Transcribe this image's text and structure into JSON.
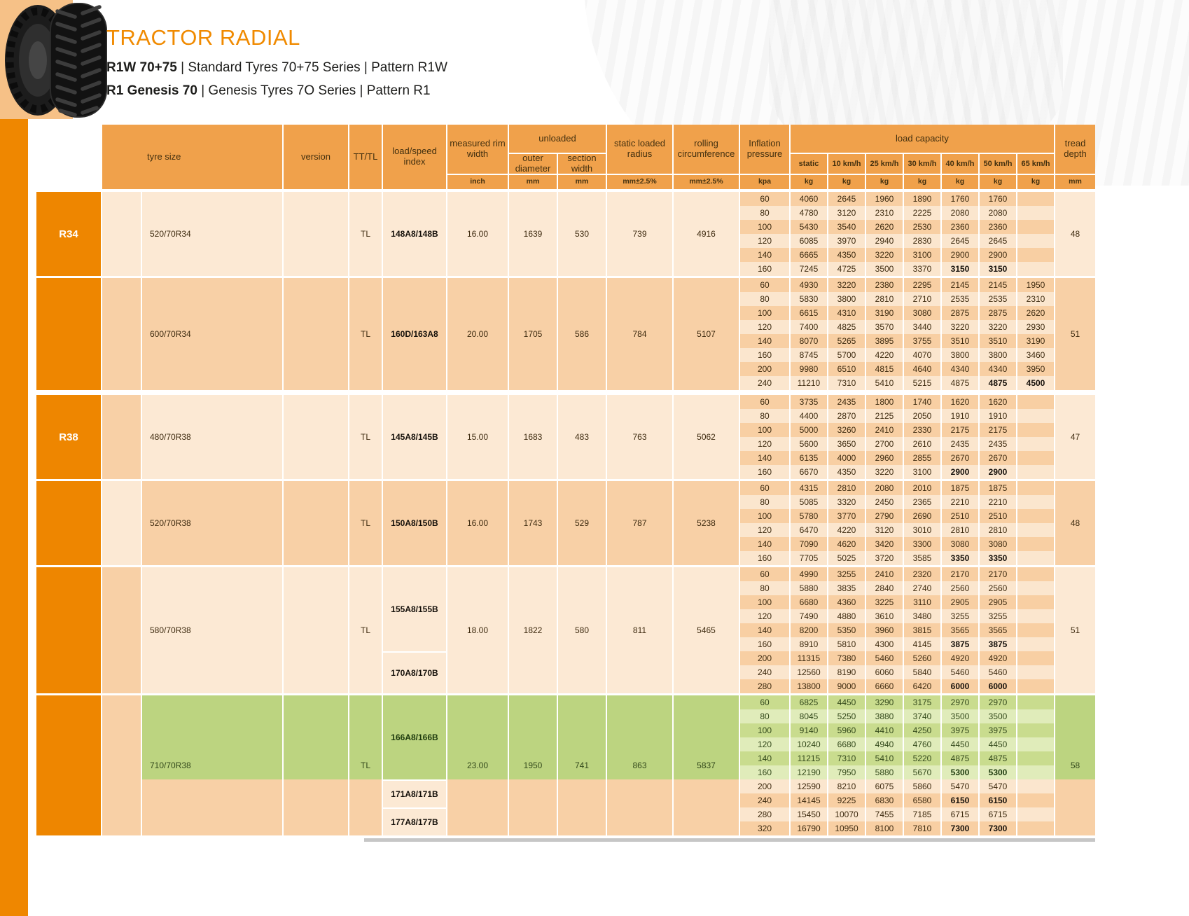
{
  "page": {
    "title": "TRACTOR RADIAL",
    "subtitle1": {
      "bold": "R1W 70+75",
      "rest": " | Standard Tyres 70+75 Series | Pattern R1W"
    },
    "subtitle2": {
      "bold": "R1 Genesis 70",
      "rest": " | Genesis Tyres 7O Series | Pattern R1"
    },
    "colors": {
      "brand_orange": "#F08A00",
      "header_orange": "#F0A14B",
      "group_label_orange": "#EE8600",
      "highlight_green": "#BCD480"
    }
  },
  "table": {
    "header": {
      "tyre_size": "tyre size",
      "version": "version",
      "tt_tl": "TT/TL",
      "load_speed_index": "load/speed index",
      "measured_rim_width": "measured rim width",
      "unloaded": "unloaded",
      "outer_diameter": "outer diameter",
      "section_width": "section width",
      "static_loaded_radius": "static loaded radius",
      "rolling_circumference": "rolling circumference",
      "inflation_pressure": "Inflation pressure",
      "load_capacity": "load capacity",
      "speeds": [
        "static",
        "10 km/h",
        "25 km/h",
        "30 km/h",
        "40 km/h",
        "50 km/h",
        "65 km/h"
      ],
      "tread_depth": "tread depth"
    },
    "units": {
      "rim": "inch",
      "outer": "mm",
      "section": "mm",
      "radius": "mm±2.5%",
      "circumference": "mm±2.5%",
      "pressure": "kpa",
      "load": [
        "kg",
        "kg",
        "kg",
        "kg",
        "kg",
        "kg",
        "kg"
      ],
      "tread": "mm"
    },
    "groups": [
      {
        "size_label": "R34",
        "tyre_size": "520/70R34",
        "version": "",
        "tt_tl": "TL",
        "load_speed": [
          {
            "label": "148A8/148B",
            "from": 1,
            "span": 6,
            "theme": "light"
          }
        ],
        "rim_width": "16.00",
        "outer_diameter": "1639",
        "section_width": "530",
        "static_loaded_radius": "739",
        "rolling_circumference": "4916",
        "tread_depth": "48",
        "tint": "light",
        "strip": "light",
        "rows": [
          {
            "kpa": "60",
            "shade": "d",
            "vals": [
              "4060",
              "2645",
              "1960",
              "1890",
              "1760",
              "1760",
              ""
            ]
          },
          {
            "kpa": "80",
            "shade": "l",
            "vals": [
              "4780",
              "3120",
              "2310",
              "2225",
              "2080",
              "2080",
              ""
            ]
          },
          {
            "kpa": "100",
            "shade": "d",
            "vals": [
              "5430",
              "3540",
              "2620",
              "2530",
              "2360",
              "2360",
              ""
            ]
          },
          {
            "kpa": "120",
            "shade": "l",
            "vals": [
              "6085",
              "3970",
              "2940",
              "2830",
              "2645",
              "2645",
              ""
            ]
          },
          {
            "kpa": "140",
            "shade": "d",
            "vals": [
              "6665",
              "4350",
              "3220",
              "3100",
              "2900",
              "2900",
              ""
            ]
          },
          {
            "kpa": "160",
            "shade": "l",
            "vals": [
              "7245",
              "4725",
              "3500",
              "3370",
              "3150",
              "3150",
              ""
            ],
            "bold": [
              4,
              5
            ]
          }
        ]
      },
      {
        "size_label": "",
        "tyre_size": "600/70R34",
        "version": "",
        "tt_tl": "TL",
        "load_speed": [
          {
            "label": "160D/163A8",
            "from": 1,
            "span": 8,
            "theme": "mid"
          }
        ],
        "rim_width": "20.00",
        "outer_diameter": "1705",
        "section_width": "586",
        "static_loaded_radius": "784",
        "rolling_circumference": "5107",
        "tread_depth": "51",
        "tint": "mid",
        "strip": "mid",
        "rows": [
          {
            "kpa": "60",
            "shade": "d",
            "vals": [
              "4930",
              "3220",
              "2380",
              "2295",
              "2145",
              "2145",
              "1950"
            ]
          },
          {
            "kpa": "80",
            "shade": "l",
            "vals": [
              "5830",
              "3800",
              "2810",
              "2710",
              "2535",
              "2535",
              "2310"
            ]
          },
          {
            "kpa": "100",
            "shade": "d",
            "vals": [
              "6615",
              "4310",
              "3190",
              "3080",
              "2875",
              "2875",
              "2620"
            ]
          },
          {
            "kpa": "120",
            "shade": "l",
            "vals": [
              "7400",
              "4825",
              "3570",
              "3440",
              "3220",
              "3220",
              "2930"
            ]
          },
          {
            "kpa": "140",
            "shade": "d",
            "vals": [
              "8070",
              "5265",
              "3895",
              "3755",
              "3510",
              "3510",
              "3190"
            ]
          },
          {
            "kpa": "160",
            "shade": "l",
            "vals": [
              "8745",
              "5700",
              "4220",
              "4070",
              "3800",
              "3800",
              "3460"
            ]
          },
          {
            "kpa": "200",
            "shade": "d",
            "vals": [
              "9980",
              "6510",
              "4815",
              "4640",
              "4340",
              "4340",
              "3950"
            ]
          },
          {
            "kpa": "240",
            "shade": "l",
            "vals": [
              "11210",
              "7310",
              "5410",
              "5215",
              "4875",
              "4875",
              "4500"
            ],
            "bold": [
              5,
              6
            ]
          }
        ]
      },
      {
        "size_label": "R38",
        "tyre_size": "480/70R38",
        "version": "",
        "tt_tl": "TL",
        "load_speed": [
          {
            "label": "145A8/145B",
            "from": 1,
            "span": 6,
            "theme": "light"
          }
        ],
        "rim_width": "15.00",
        "outer_diameter": "1683",
        "section_width": "483",
        "static_loaded_radius": "763",
        "rolling_circumference": "5062",
        "tread_depth": "47",
        "tint": "light",
        "strip": "mid",
        "rows": [
          {
            "kpa": "60",
            "shade": "d",
            "vals": [
              "3735",
              "2435",
              "1800",
              "1740",
              "1620",
              "1620",
              ""
            ]
          },
          {
            "kpa": "80",
            "shade": "l",
            "vals": [
              "4400",
              "2870",
              "2125",
              "2050",
              "1910",
              "1910",
              ""
            ]
          },
          {
            "kpa": "100",
            "shade": "d",
            "vals": [
              "5000",
              "3260",
              "2410",
              "2330",
              "2175",
              "2175",
              ""
            ]
          },
          {
            "kpa": "120",
            "shade": "l",
            "vals": [
              "5600",
              "3650",
              "2700",
              "2610",
              "2435",
              "2435",
              ""
            ]
          },
          {
            "kpa": "140",
            "shade": "d",
            "vals": [
              "6135",
              "4000",
              "2960",
              "2855",
              "2670",
              "2670",
              ""
            ]
          },
          {
            "kpa": "160",
            "shade": "l",
            "vals": [
              "6670",
              "4350",
              "3220",
              "3100",
              "2900",
              "2900",
              ""
            ],
            "bold": [
              4,
              5
            ]
          }
        ]
      },
      {
        "size_label": "",
        "tyre_size": "520/70R38",
        "version": "",
        "tt_tl": "TL",
        "load_speed": [
          {
            "label": "150A8/150B",
            "from": 1,
            "span": 6,
            "theme": "mid"
          }
        ],
        "rim_width": "16.00",
        "outer_diameter": "1743",
        "section_width": "529",
        "static_loaded_radius": "787",
        "rolling_circumference": "5238",
        "tread_depth": "48",
        "tint": "mid",
        "strip": "light",
        "rows": [
          {
            "kpa": "60",
            "shade": "d",
            "vals": [
              "4315",
              "2810",
              "2080",
              "2010",
              "1875",
              "1875",
              ""
            ]
          },
          {
            "kpa": "80",
            "shade": "l",
            "vals": [
              "5085",
              "3320",
              "2450",
              "2365",
              "2210",
              "2210",
              ""
            ]
          },
          {
            "kpa": "100",
            "shade": "d",
            "vals": [
              "5780",
              "3770",
              "2790",
              "2690",
              "2510",
              "2510",
              ""
            ]
          },
          {
            "kpa": "120",
            "shade": "l",
            "vals": [
              "6470",
              "4220",
              "3120",
              "3010",
              "2810",
              "2810",
              ""
            ]
          },
          {
            "kpa": "140",
            "shade": "d",
            "vals": [
              "7090",
              "4620",
              "3420",
              "3300",
              "3080",
              "3080",
              ""
            ]
          },
          {
            "kpa": "160",
            "shade": "l",
            "vals": [
              "7705",
              "5025",
              "3720",
              "3585",
              "3350",
              "3350",
              ""
            ],
            "bold": [
              4,
              5
            ]
          }
        ]
      },
      {
        "size_label": "",
        "tyre_size": "580/70R38",
        "version": "",
        "tt_tl": "TL",
        "load_speed": [
          {
            "label": "155A8/155B",
            "from": 1,
            "span": 6,
            "theme": "light"
          },
          {
            "label": "170A8/170B",
            "from": 7,
            "span": 3,
            "theme": "light"
          }
        ],
        "rim_width": "18.00",
        "outer_diameter": "1822",
        "section_width": "580",
        "static_loaded_radius": "811",
        "rolling_circumference": "5465",
        "tread_depth": "51",
        "tint": "light",
        "strip": "mid",
        "rows": [
          {
            "kpa": "60",
            "shade": "d",
            "vals": [
              "4990",
              "3255",
              "2410",
              "2320",
              "2170",
              "2170",
              ""
            ]
          },
          {
            "kpa": "80",
            "shade": "l",
            "vals": [
              "5880",
              "3835",
              "2840",
              "2740",
              "2560",
              "2560",
              ""
            ]
          },
          {
            "kpa": "100",
            "shade": "d",
            "vals": [
              "6680",
              "4360",
              "3225",
              "3110",
              "2905",
              "2905",
              ""
            ]
          },
          {
            "kpa": "120",
            "shade": "l",
            "vals": [
              "7490",
              "4880",
              "3610",
              "3480",
              "3255",
              "3255",
              ""
            ]
          },
          {
            "kpa": "140",
            "shade": "d",
            "vals": [
              "8200",
              "5350",
              "3960",
              "3815",
              "3565",
              "3565",
              ""
            ]
          },
          {
            "kpa": "160",
            "shade": "l",
            "vals": [
              "8910",
              "5810",
              "4300",
              "4145",
              "3875",
              "3875",
              ""
            ],
            "bold": [
              4,
              5
            ]
          },
          {
            "kpa": "200",
            "shade": "d",
            "vals": [
              "11315",
              "7380",
              "5460",
              "5260",
              "4920",
              "4920",
              ""
            ]
          },
          {
            "kpa": "240",
            "shade": "l",
            "vals": [
              "12560",
              "8190",
              "6060",
              "5840",
              "5460",
              "5460",
              ""
            ]
          },
          {
            "kpa": "280",
            "shade": "d",
            "vals": [
              "13800",
              "9000",
              "6660",
              "6420",
              "6000",
              "6000",
              ""
            ],
            "bold": [
              4,
              5
            ]
          }
        ]
      },
      {
        "size_label": "",
        "tyre_size": "710/70R38",
        "version": "",
        "tt_tl": "TL",
        "load_speed": [
          {
            "label": "166A8/166B",
            "from": 1,
            "span": 6,
            "theme": "green"
          },
          {
            "label": "171A8/171B",
            "from": 7,
            "span": 2,
            "theme": "light"
          },
          {
            "label": "177A8/177B",
            "from": 9,
            "span": 2,
            "theme": "light"
          }
        ],
        "rim_width": "23.00",
        "outer_diameter": "1950",
        "section_width": "741",
        "static_loaded_radius": "863",
        "rolling_circumference": "5837",
        "tread_depth": "58",
        "tint": "mid",
        "strip": "mid",
        "green_rows": 6,
        "rows": [
          {
            "kpa": "60",
            "shade": "d",
            "vals": [
              "6825",
              "4450",
              "3290",
              "3175",
              "2970",
              "2970",
              ""
            ]
          },
          {
            "kpa": "80",
            "shade": "l",
            "vals": [
              "8045",
              "5250",
              "3880",
              "3740",
              "3500",
              "3500",
              ""
            ]
          },
          {
            "kpa": "100",
            "shade": "d",
            "vals": [
              "9140",
              "5960",
              "4410",
              "4250",
              "3975",
              "3975",
              ""
            ]
          },
          {
            "kpa": "120",
            "shade": "l",
            "vals": [
              "10240",
              "6680",
              "4940",
              "4760",
              "4450",
              "4450",
              ""
            ]
          },
          {
            "kpa": "140",
            "shade": "d",
            "vals": [
              "11215",
              "7310",
              "5410",
              "5220",
              "4875",
              "4875",
              ""
            ]
          },
          {
            "kpa": "160",
            "shade": "l",
            "vals": [
              "12190",
              "7950",
              "5880",
              "5670",
              "5300",
              "5300",
              ""
            ],
            "bold": [
              4,
              5
            ]
          },
          {
            "kpa": "200",
            "shade": "l",
            "vals": [
              "12590",
              "8210",
              "6075",
              "5860",
              "5470",
              "5470",
              ""
            ]
          },
          {
            "kpa": "240",
            "shade": "d",
            "vals": [
              "14145",
              "9225",
              "6830",
              "6580",
              "6150",
              "6150",
              ""
            ],
            "bold": [
              4,
              5
            ]
          },
          {
            "kpa": "280",
            "shade": "l",
            "vals": [
              "15450",
              "10070",
              "7455",
              "7185",
              "6715",
              "6715",
              ""
            ]
          },
          {
            "kpa": "320",
            "shade": "d",
            "vals": [
              "16790",
              "10950",
              "8100",
              "7810",
              "7300",
              "7300",
              ""
            ],
            "bold": [
              4,
              5
            ]
          }
        ]
      }
    ]
  }
}
